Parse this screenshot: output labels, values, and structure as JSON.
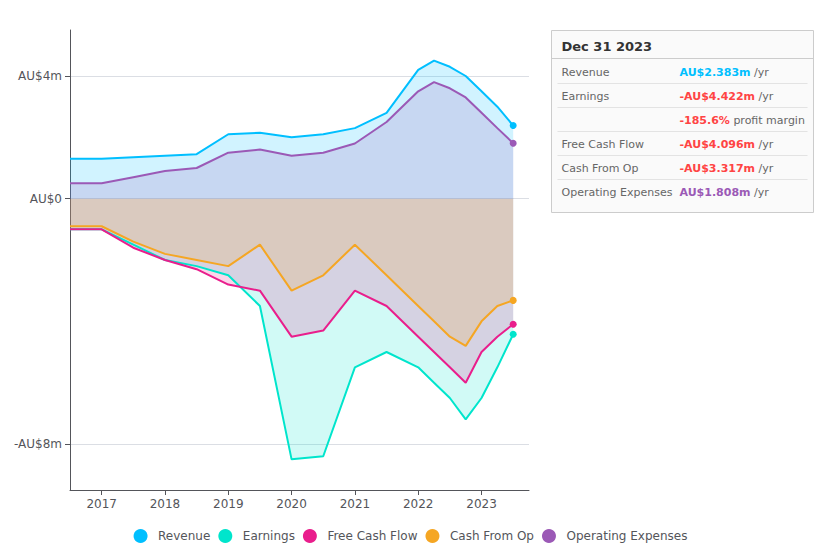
{
  "chart_data": {
    "type": "line",
    "title": "Dec 31 2023",
    "x": [
      2016.5,
      2017,
      2017.5,
      2018,
      2018.5,
      2019,
      2019.5,
      2020,
      2020.5,
      2021,
      2021.5,
      2022,
      2022.25,
      2022.5,
      2022.75,
      2023,
      2023.25,
      2023.5
    ],
    "series": [
      {
        "name": "Revenue",
        "color": "#00bfff",
        "values": [
          1.3,
          1.3,
          1.35,
          1.4,
          1.45,
          2.1,
          2.15,
          2.0,
          2.1,
          2.3,
          2.8,
          4.2,
          4.5,
          4.3,
          4.0,
          3.5,
          3.0,
          2.383
        ]
      },
      {
        "name": "Earnings",
        "color": "#00e5cc",
        "values": [
          -1.0,
          -1.0,
          -1.5,
          -2.0,
          -2.2,
          -2.5,
          -3.5,
          -8.5,
          -8.4,
          -5.5,
          -5.0,
          -5.5,
          -6.0,
          -6.5,
          -7.2,
          -6.5,
          -5.5,
          -4.422
        ]
      },
      {
        "name": "Free Cash Flow",
        "color": "#e91e8c",
        "values": [
          -1.0,
          -1.0,
          -1.6,
          -2.0,
          -2.3,
          -2.8,
          -3.0,
          -4.5,
          -4.3,
          -3.0,
          -3.5,
          -4.5,
          -5.0,
          -5.5,
          -6.0,
          -5.0,
          -4.5,
          -4.096
        ]
      },
      {
        "name": "Cash From Op",
        "color": "#f5a623",
        "values": [
          -0.9,
          -0.9,
          -1.4,
          -1.8,
          -2.0,
          -2.2,
          -1.5,
          -3.0,
          -2.5,
          -1.5,
          -2.5,
          -3.5,
          -4.0,
          -4.5,
          -4.8,
          -4.0,
          -3.5,
          -3.317
        ]
      },
      {
        "name": "Operating Expenses",
        "color": "#9b59b6",
        "values": [
          0.5,
          0.5,
          0.7,
          0.9,
          1.0,
          1.5,
          1.6,
          1.4,
          1.5,
          1.8,
          2.5,
          3.5,
          3.8,
          3.6,
          3.3,
          2.8,
          2.3,
          1.808
        ]
      }
    ],
    "xlim": [
      2016.5,
      2023.75
    ],
    "xticks": [
      2017,
      2018,
      2019,
      2020,
      2021,
      2022,
      2023
    ],
    "ylim": [
      -9.5,
      5.5
    ],
    "yticks": [
      {
        "value": 4,
        "label": "AU$4m"
      },
      {
        "value": 0,
        "label": "AU$0"
      },
      {
        "value": -8,
        "label": "-AU$8m"
      }
    ],
    "grid": true,
    "legend": "bottom",
    "annotations": [
      {
        "label": "Revenue",
        "value": "AU$2.383m",
        "suffix": "/yr",
        "color": "#00bfff"
      },
      {
        "label": "Earnings",
        "value": "-AU$4.422m",
        "suffix": "/yr",
        "color": "#ff4444"
      },
      {
        "value": "-185.6%",
        "suffix": "profit margin",
        "color": "#ff4444"
      },
      {
        "label": "Free Cash Flow",
        "value": "-AU$4.096m",
        "suffix": "/yr",
        "color": "#ff4444"
      },
      {
        "label": "Cash From Op",
        "value": "-AU$3.317m",
        "suffix": "/yr",
        "color": "#ff4444"
      },
      {
        "label": "Operating Expenses",
        "value": "AU$1.808m",
        "suffix": "/yr",
        "color": "#9b59b6"
      }
    ]
  }
}
